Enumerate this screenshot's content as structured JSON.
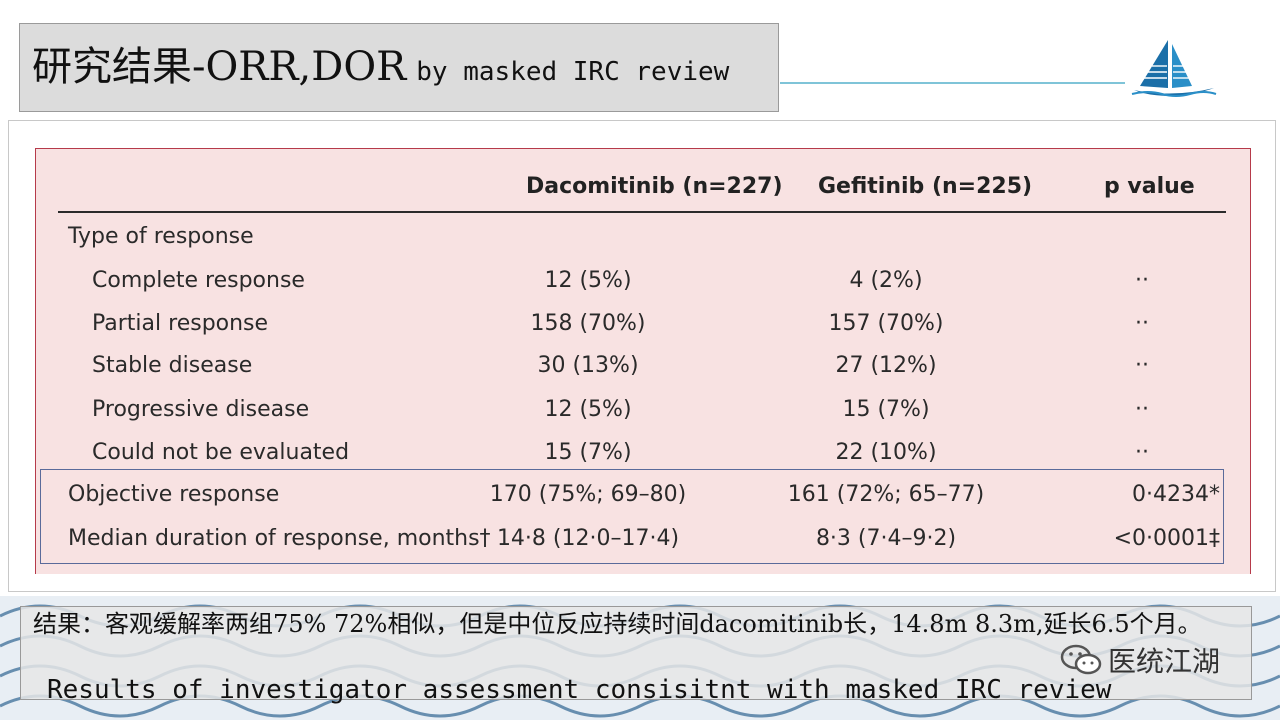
{
  "title": {
    "main": "研究结果-ORR,DOR",
    "sub": "by masked IRC review"
  },
  "table": {
    "headers": {
      "dacomitinib": "Dacomitinib (n=227)",
      "gefitinib": "Gefitinib (n=225)",
      "pvalue": "p value"
    },
    "section": "Type of response",
    "rows": [
      {
        "label": "Complete response",
        "dac": "12 (5%)",
        "gef": "4 (2%)",
        "p": "··"
      },
      {
        "label": "Partial response",
        "dac": "158 (70%)",
        "gef": "157 (70%)",
        "p": "··"
      },
      {
        "label": "Stable disease",
        "dac": "30 (13%)",
        "gef": "27 (12%)",
        "p": "··"
      },
      {
        "label": "Progressive disease",
        "dac": "12 (5%)",
        "gef": "15 (7%)",
        "p": "··"
      },
      {
        "label": "Could not be evaluated",
        "dac": "15 (7%)",
        "gef": "22 (10%)",
        "p": "··"
      },
      {
        "label": "Objective response",
        "dac": "170 (75%; 69–80)",
        "gef": "161 (72%; 65–77)",
        "p": "0·4234*"
      },
      {
        "label": "Median duration of response, months†",
        "dac": "14·8 (12·0–17·4)",
        "gef": "8·3 (7·4–9·2)",
        "p": "<0·0001‡"
      }
    ]
  },
  "conclusion": {
    "cn": "结果：客观缓解率两组75% 72%相似，但是中位反应持续时间dacomitinib长，14.8m 8.3m,延长6.5个月。",
    "en": "Results of investigator assessment consisitnt with  masked IRC review"
  },
  "wechat": {
    "label": "医统江湖",
    "icon": "wechat-icon"
  },
  "colors": {
    "panel_bg": "#f8e2e2",
    "panel_border": "#b63a4a",
    "highlight_border": "#5a6a9a",
    "title_bg": "#dcdcdc"
  }
}
